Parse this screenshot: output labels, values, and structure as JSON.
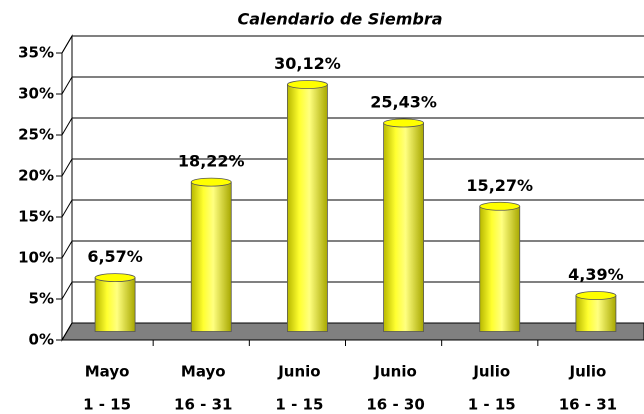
{
  "chart_data": {
    "type": "bar3d",
    "title": "Calendario de Siembra",
    "categories": [
      [
        "Mayo",
        "1 - 15"
      ],
      [
        "Mayo",
        "16 - 31"
      ],
      [
        "Junio",
        "1 - 15"
      ],
      [
        "Junio",
        "16 - 30"
      ],
      [
        "Julio",
        "1 - 15"
      ],
      [
        "Julio",
        "16 - 31"
      ]
    ],
    "values": [
      6.57,
      18.22,
      30.12,
      25.43,
      15.27,
      4.39
    ],
    "value_labels": [
      "6,57%",
      "18,22%",
      "30,12%",
      "25,43%",
      "15,27%",
      "4,39%"
    ],
    "color": "#ffff00",
    "ylim": [
      0,
      35
    ],
    "yticks": [
      {
        "value": 0,
        "label": "0%"
      },
      {
        "value": 5,
        "label": "5%"
      },
      {
        "value": 10,
        "label": "10%"
      },
      {
        "value": 15,
        "label": "15%"
      },
      {
        "value": 20,
        "label": "20%"
      },
      {
        "value": 25,
        "label": "25%"
      },
      {
        "value": 30,
        "label": "30%"
      },
      {
        "value": 35,
        "label": "35%"
      }
    ],
    "grid": true
  }
}
